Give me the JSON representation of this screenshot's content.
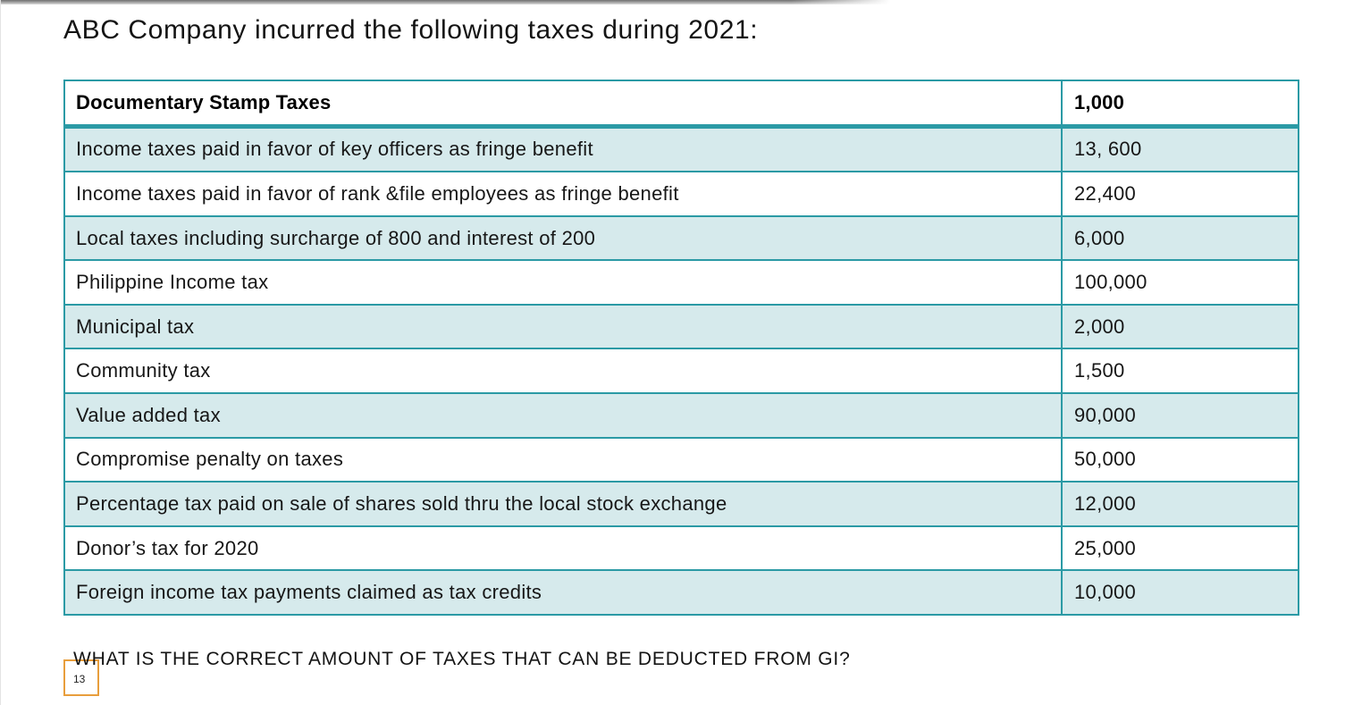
{
  "slide": {
    "title": "ABC Company incurred the following taxes during 2021:",
    "question": "WHAT IS THE CORRECT AMOUNT OF TAXES THAT CAN BE DEDUCTED FROM GI?",
    "page_number": "13"
  },
  "table": {
    "header": {
      "label": "Documentary Stamp Taxes",
      "value": "1,000"
    },
    "rows": [
      {
        "label": "Income taxes paid in favor of key officers as fringe benefit",
        "value": "13, 600"
      },
      {
        "label": "Income taxes paid in favor of rank &file employees as fringe benefit",
        "value": "22,400"
      },
      {
        "label": "Local taxes including surcharge of 800 and interest of 200",
        "value": "6,000"
      },
      {
        "label": "Philippine Income tax",
        "value": "100,000"
      },
      {
        "label": "Municipal tax",
        "value": "2,000"
      },
      {
        "label": "Community tax",
        "value": "1,500"
      },
      {
        "label": "Value added tax",
        "value": "90,000"
      },
      {
        "label": "Compromise penalty on taxes",
        "value": "50,000"
      },
      {
        "label": "Percentage tax paid on sale of shares sold thru the local stock exchange",
        "value": "12,000"
      },
      {
        "label": "Donor’s tax for 2020",
        "value": "25,000"
      },
      {
        "label": "Foreign income tax payments claimed as tax credits",
        "value": "10,000"
      }
    ]
  },
  "colors": {
    "table_border": "#2b9aa5",
    "row_band_fill": "#d6eaec",
    "page_box_border": "#e89e3c",
    "text": "#171717"
  }
}
